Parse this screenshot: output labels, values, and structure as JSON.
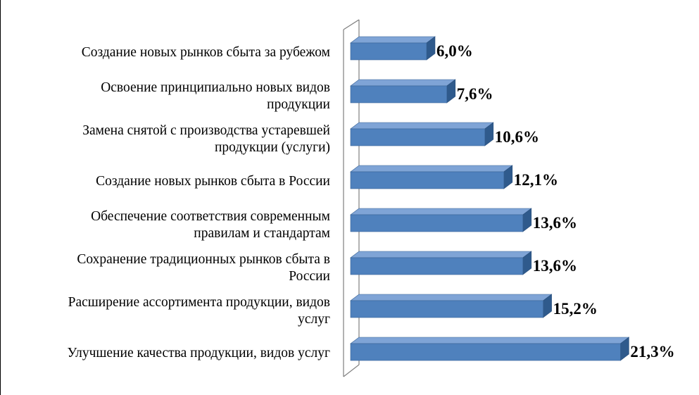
{
  "chart_data": {
    "type": "bar",
    "orientation": "horizontal",
    "style": "3d",
    "bar_color": "#4F81BD",
    "categories": [
      [
        "Создание новых рынков сбыта за рубежом"
      ],
      [
        "Освоение принципиально новых видов",
        "продукции"
      ],
      [
        "Замена снятой с производства устаревшей",
        "продукции (услуги)"
      ],
      [
        "Создание новых рынков сбыта в России"
      ],
      [
        "Обеспечение соответствия современным",
        "правилам и стандартам"
      ],
      [
        "Сохранение традиционных рынков сбыта в",
        "России"
      ],
      [
        "Расширение ассортимента продукции, видов",
        "услуг"
      ],
      [
        "Улучшение качества продукции, видов услуг"
      ]
    ],
    "values": [
      6.0,
      7.6,
      10.6,
      12.1,
      13.6,
      13.6,
      15.2,
      21.3
    ],
    "data_labels": [
      "6,0%",
      "7,6%",
      "10,6%",
      "12,1%",
      "13,6%",
      "13,6%",
      "15,2%",
      "21,3%"
    ],
    "value_axis_max": 21.3,
    "grid": false,
    "legend": "none"
  }
}
